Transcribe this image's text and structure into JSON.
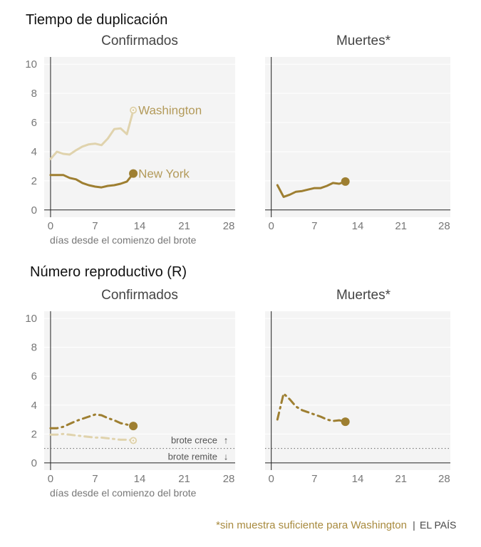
{
  "sections": [
    {
      "title": "Tiempo de duplicación"
    },
    {
      "title": "Número reproductivo (R)"
    }
  ],
  "footnote": "*sin muestra suficiente para Washington",
  "source": "EL PAÍS",
  "separator": "|",
  "colors": {
    "new_york": "#9e7f31",
    "washington": "#e0d3ad",
    "panel_bg": "#f4f4f4",
    "axis": "#222222",
    "grid": "#ffffff"
  },
  "chart_data": [
    {
      "type": "line",
      "section": "Tiempo de duplicación",
      "title": "Confirmados",
      "xlabel": "días desde el comienzo del brote",
      "xlim": [
        -1,
        29
      ],
      "ylim": [
        -0.5,
        10.5
      ],
      "xticks": [
        0,
        7,
        14,
        21,
        28
      ],
      "yticks": [
        0,
        2,
        4,
        6,
        8,
        10
      ],
      "series": [
        {
          "name": "Washington",
          "color": "#e0d3ad",
          "style": "solid",
          "x": [
            0,
            1,
            2,
            3,
            4,
            5,
            6,
            7,
            8,
            9,
            10,
            11,
            12,
            13
          ],
          "y": [
            3.5,
            4.0,
            3.85,
            3.8,
            4.1,
            4.35,
            4.5,
            4.55,
            4.45,
            4.9,
            5.55,
            5.6,
            5.2,
            6.85
          ],
          "end_marker": "small"
        },
        {
          "name": "New York",
          "color": "#9e7f31",
          "style": "solid",
          "x": [
            0,
            1,
            2,
            3,
            4,
            5,
            6,
            7,
            8,
            9,
            10,
            11,
            12,
            13
          ],
          "y": [
            2.4,
            2.4,
            2.4,
            2.2,
            2.1,
            1.85,
            1.7,
            1.6,
            1.55,
            1.65,
            1.7,
            1.8,
            1.95,
            2.5
          ],
          "end_marker": "large"
        }
      ]
    },
    {
      "type": "line",
      "section": "Tiempo de duplicación",
      "title": "Muertes*",
      "xlabel": "",
      "xlim": [
        -1,
        29
      ],
      "ylim": [
        -0.5,
        10.5
      ],
      "xticks": [
        0,
        7,
        14,
        21,
        28
      ],
      "yticks": [
        0,
        2,
        4,
        6,
        8,
        10
      ],
      "series": [
        {
          "name": "New York",
          "color": "#9e7f31",
          "style": "solid",
          "x": [
            1,
            2,
            3,
            4,
            5,
            6,
            7,
            8,
            9,
            10,
            11,
            12
          ],
          "y": [
            1.7,
            0.9,
            1.05,
            1.25,
            1.3,
            1.4,
            1.5,
            1.5,
            1.65,
            1.85,
            1.8,
            1.95
          ],
          "end_marker": "large"
        }
      ]
    },
    {
      "type": "line",
      "section": "Número reproductivo (R)",
      "title": "Confirmados",
      "xlabel": "días desde el comienzo del brote",
      "xlim": [
        -1,
        29
      ],
      "ylim": [
        -0.5,
        10.5
      ],
      "xticks": [
        0,
        7,
        14,
        21,
        28
      ],
      "yticks": [
        0,
        2,
        4,
        6,
        8,
        10
      ],
      "threshold": {
        "y": 1,
        "above_label": "brote crece",
        "below_label": "brote remite",
        "above_arrow": "↑",
        "below_arrow": "↓"
      },
      "series": [
        {
          "name": "Washington",
          "color": "#e0d3ad",
          "style": "dashdot",
          "x": [
            0,
            1,
            2,
            3,
            4,
            5,
            6,
            7,
            8,
            9,
            10,
            11,
            12,
            13
          ],
          "y": [
            1.95,
            1.95,
            2.0,
            1.95,
            1.9,
            1.85,
            1.8,
            1.75,
            1.75,
            1.7,
            1.65,
            1.6,
            1.6,
            1.55
          ],
          "end_marker": "small"
        },
        {
          "name": "New York",
          "color": "#9e7f31",
          "style": "dashdot",
          "x": [
            0,
            1,
            2,
            3,
            4,
            5,
            6,
            7,
            8,
            9,
            10,
            11,
            12,
            13
          ],
          "y": [
            2.4,
            2.4,
            2.5,
            2.7,
            2.9,
            3.05,
            3.2,
            3.35,
            3.3,
            3.1,
            2.95,
            2.75,
            2.65,
            2.55
          ],
          "end_marker": "large"
        }
      ]
    },
    {
      "type": "line",
      "section": "Número reproductivo (R)",
      "title": "Muertes*",
      "xlabel": "",
      "xlim": [
        -1,
        29
      ],
      "ylim": [
        -0.5,
        10.5
      ],
      "xticks": [
        0,
        7,
        14,
        21,
        28
      ],
      "yticks": [
        0,
        2,
        4,
        6,
        8,
        10
      ],
      "threshold": {
        "y": 1
      },
      "series": [
        {
          "name": "New York",
          "color": "#9e7f31",
          "style": "dashdot",
          "x": [
            1,
            2,
            3,
            4,
            5,
            6,
            7,
            8,
            9,
            10,
            11,
            12
          ],
          "y": [
            3.0,
            4.8,
            4.4,
            3.9,
            3.65,
            3.5,
            3.35,
            3.2,
            3.0,
            2.9,
            2.95,
            2.85
          ],
          "end_marker": "large"
        }
      ]
    }
  ]
}
